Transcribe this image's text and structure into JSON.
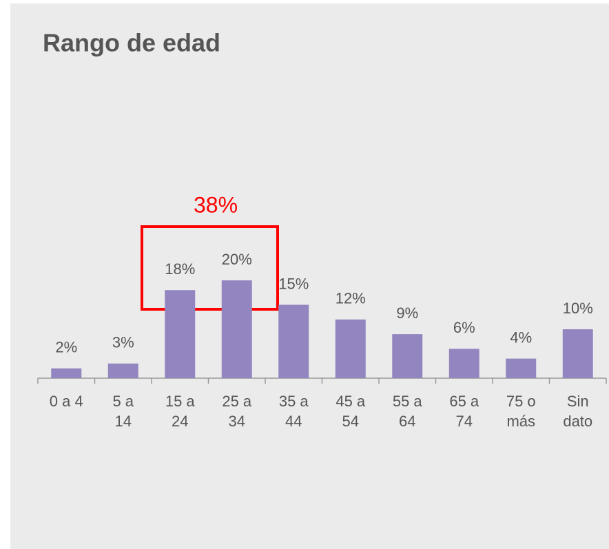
{
  "chart_data": {
    "type": "bar",
    "title": "Rango de edad",
    "categories": [
      "0 a 4",
      "5 a 14",
      "15 a 24",
      "25 a 34",
      "35 a 44",
      "45 a 54",
      "55 a 64",
      "65 a 74",
      "75 o más",
      "Sin dato"
    ],
    "values": [
      2,
      3,
      18,
      20,
      15,
      12,
      9,
      6,
      4,
      10
    ],
    "value_labels": [
      "2%",
      "3%",
      "18%",
      "20%",
      "15%",
      "12%",
      "9%",
      "6%",
      "4%",
      "10%"
    ],
    "color": "#9386c0",
    "annotation": "38%"
  }
}
